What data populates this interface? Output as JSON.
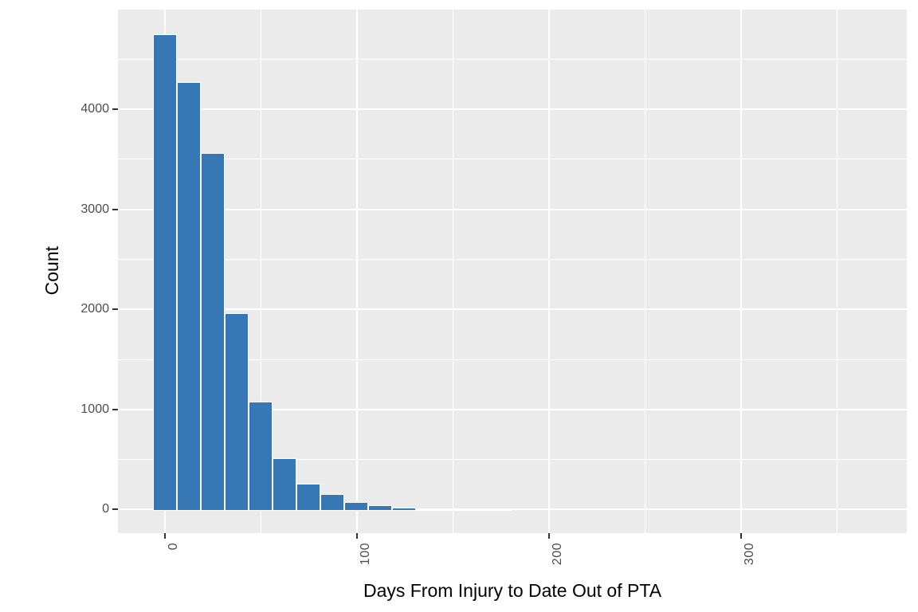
{
  "chart_data": {
    "type": "bar",
    "subtype": "histogram",
    "title": "",
    "xlabel": "Days From Injury to Date Out of PTA",
    "ylabel": "Count",
    "legend": "none",
    "grid": true,
    "panel_bg": "#EBEBEB",
    "grid_color": "#FFFFFF",
    "bar_color": "#3677B5",
    "bar_outline_color": "#FFFFFF",
    "tick_label_color": "#4D4D4D",
    "axis_title_color": "#000000",
    "tick_mark_color": "#333333",
    "binwidth_days": 12.45,
    "bins": [
      {
        "center": 0.0,
        "count": 4750
      },
      {
        "center": 12.45,
        "count": 4270
      },
      {
        "center": 24.9,
        "count": 3565
      },
      {
        "center": 37.35,
        "count": 1965
      },
      {
        "center": 49.8,
        "count": 1080
      },
      {
        "center": 62.25,
        "count": 512
      },
      {
        "center": 74.7,
        "count": 255
      },
      {
        "center": 87.15,
        "count": 155
      },
      {
        "center": 99.6,
        "count": 75
      },
      {
        "center": 112.05,
        "count": 42
      },
      {
        "center": 124.5,
        "count": 20
      },
      {
        "center": 136.95,
        "count": 6
      },
      {
        "center": 149.4,
        "count": 4
      },
      {
        "center": 161.85,
        "count": 2
      },
      {
        "center": 174.3,
        "count": 1
      }
    ],
    "x_ticks": [
      0,
      100,
      200,
      300
    ],
    "x_tick_labels": [
      "0",
      "100",
      "200",
      "300"
    ],
    "x_minor_ticks": [
      50,
      150,
      250,
      350
    ],
    "y_ticks": [
      0,
      1000,
      2000,
      3000,
      4000
    ],
    "y_tick_labels": [
      "0",
      "1000",
      "2000",
      "3000",
      "4000"
    ],
    "y_minor_ticks": [
      500,
      1500,
      2500,
      3500,
      4500
    ],
    "x_domain": [
      -24.5,
      386.4
    ],
    "y_domain": [
      -232,
      4996
    ]
  }
}
